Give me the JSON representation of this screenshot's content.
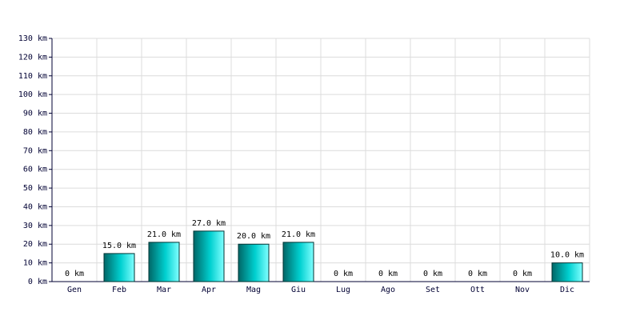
{
  "chart_data": {
    "type": "bar",
    "categories": [
      "Gen",
      "Feb",
      "Mar",
      "Apr",
      "Mag",
      "Giu",
      "Lug",
      "Ago",
      "Set",
      "Ott",
      "Nov",
      "Dic"
    ],
    "values": [
      0,
      15,
      21,
      27,
      20,
      21,
      0,
      0,
      0,
      0,
      0,
      10
    ],
    "value_labels": [
      "0 km",
      "15.0 km",
      "21.0 km",
      "27.0 km",
      "20.0 km",
      "21.0 km",
      "0 km",
      "0 km",
      "0 km",
      "0 km",
      "0 km",
      "10.0 km"
    ],
    "color": "#00d0d0",
    "ylim": [
      0,
      130
    ],
    "yticks": [
      {
        "value": 0,
        "label": "0 km"
      },
      {
        "value": 10,
        "label": "10 km"
      },
      {
        "value": 20,
        "label": "20 km"
      },
      {
        "value": 30,
        "label": "30 km"
      },
      {
        "value": 40,
        "label": "40 km"
      },
      {
        "value": 50,
        "label": "50 km"
      },
      {
        "value": 60,
        "label": "60 km"
      },
      {
        "value": 70,
        "label": "70 km"
      },
      {
        "value": 80,
        "label": "80 km"
      },
      {
        "value": 90,
        "label": "90 km"
      },
      {
        "value": 100,
        "label": "100 km"
      },
      {
        "value": 110,
        "label": "110 km"
      },
      {
        "value": 120,
        "label": "120 km"
      },
      {
        "value": 130,
        "label": "130 km"
      }
    ],
    "grid": true
  }
}
